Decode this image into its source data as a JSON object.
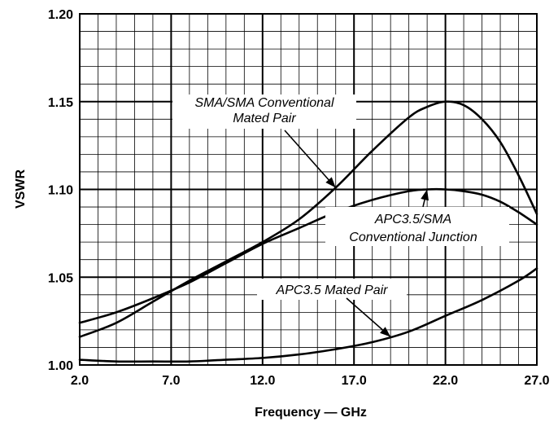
{
  "chart_data": {
    "type": "line",
    "xlabel": "Frequency — GHz",
    "ylabel": "VSWR",
    "xlim": [
      2.0,
      27.0
    ],
    "ylim": [
      1.0,
      1.2
    ],
    "x_ticks": [
      "2.0",
      "7.0",
      "12.0",
      "17.0",
      "22.0",
      "27.0"
    ],
    "y_ticks": [
      "1.00",
      "1.05",
      "1.10",
      "1.15",
      "1.20"
    ],
    "grid": true,
    "series": [
      {
        "name": "SMA/SMA Conventional Mated Pair",
        "x": [
          2.0,
          4.0,
          6.0,
          8.0,
          10.0,
          12.0,
          14.0,
          16.0,
          18.0,
          20.0,
          21.0,
          22.0,
          23.0,
          24.0,
          25.0,
          26.0,
          27.0
        ],
        "y": [
          1.016,
          1.024,
          1.036,
          1.048,
          1.059,
          1.07,
          1.083,
          1.101,
          1.122,
          1.141,
          1.147,
          1.15,
          1.148,
          1.14,
          1.127,
          1.108,
          1.086
        ]
      },
      {
        "name": "APC3.5/SMA Conventional Junction",
        "x": [
          2.0,
          4.0,
          6.0,
          8.0,
          10.0,
          12.0,
          14.0,
          16.0,
          18.0,
          20.0,
          21.0,
          22.0,
          23.0,
          24.0,
          25.0,
          26.0,
          27.0
        ],
        "y": [
          1.024,
          1.03,
          1.038,
          1.047,
          1.058,
          1.069,
          1.078,
          1.087,
          1.094,
          1.099,
          1.1,
          1.1,
          1.099,
          1.097,
          1.093,
          1.087,
          1.08
        ]
      },
      {
        "name": "APC3.5 Mated Pair",
        "x": [
          2.0,
          4.0,
          6.0,
          8.0,
          10.0,
          12.0,
          14.0,
          16.0,
          18.0,
          20.0,
          22.0,
          24.0,
          26.0,
          27.0
        ],
        "y": [
          1.003,
          1.002,
          1.002,
          1.002,
          1.003,
          1.004,
          1.006,
          1.009,
          1.013,
          1.019,
          1.028,
          1.037,
          1.048,
          1.055
        ]
      }
    ],
    "annotations": [
      {
        "text": [
          "SMA/SMA Conventional",
          "Mated Pair"
        ],
        "target": [
          16.0,
          1.101
        ]
      },
      {
        "text": [
          "APC3.5/SMA",
          "Conventional Junction"
        ],
        "target": [
          21.0,
          1.1
        ]
      },
      {
        "text": [
          "APC3.5 Mated Pair"
        ],
        "target": [
          19.0,
          1.016
        ]
      }
    ]
  }
}
